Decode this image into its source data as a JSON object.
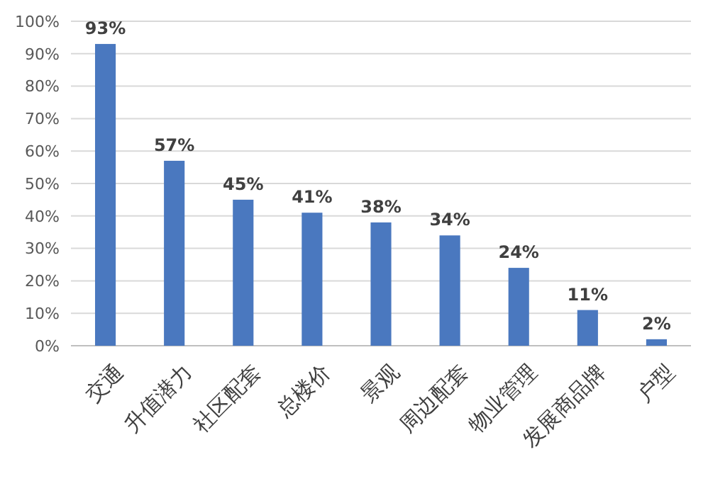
{
  "chart_data": {
    "type": "bar",
    "categories": [
      "交通",
      "升值潜力",
      "社区配套",
      "总楼价",
      "景观",
      "周边配套",
      "物业管理",
      "发展商品牌",
      "户型"
    ],
    "values": [
      93,
      57,
      45,
      41,
      38,
      34,
      24,
      11,
      2
    ],
    "value_labels": [
      "93%",
      "57%",
      "45%",
      "41%",
      "38%",
      "34%",
      "24%",
      "11%",
      "2%"
    ],
    "color": "#4a78bf",
    "ylim": [
      0,
      100
    ],
    "yticks": [
      {
        "value": 0,
        "label": "0%"
      },
      {
        "value": 10,
        "label": "10%"
      },
      {
        "value": 20,
        "label": "20%"
      },
      {
        "value": 30,
        "label": "30%"
      },
      {
        "value": 40,
        "label": "40%"
      },
      {
        "value": 50,
        "label": "50%"
      },
      {
        "value": 60,
        "label": "60%"
      },
      {
        "value": 70,
        "label": "70%"
      },
      {
        "value": 80,
        "label": "80%"
      },
      {
        "value": 90,
        "label": "90%"
      },
      {
        "value": 100,
        "label": "100%"
      }
    ],
    "grid": "y"
  }
}
